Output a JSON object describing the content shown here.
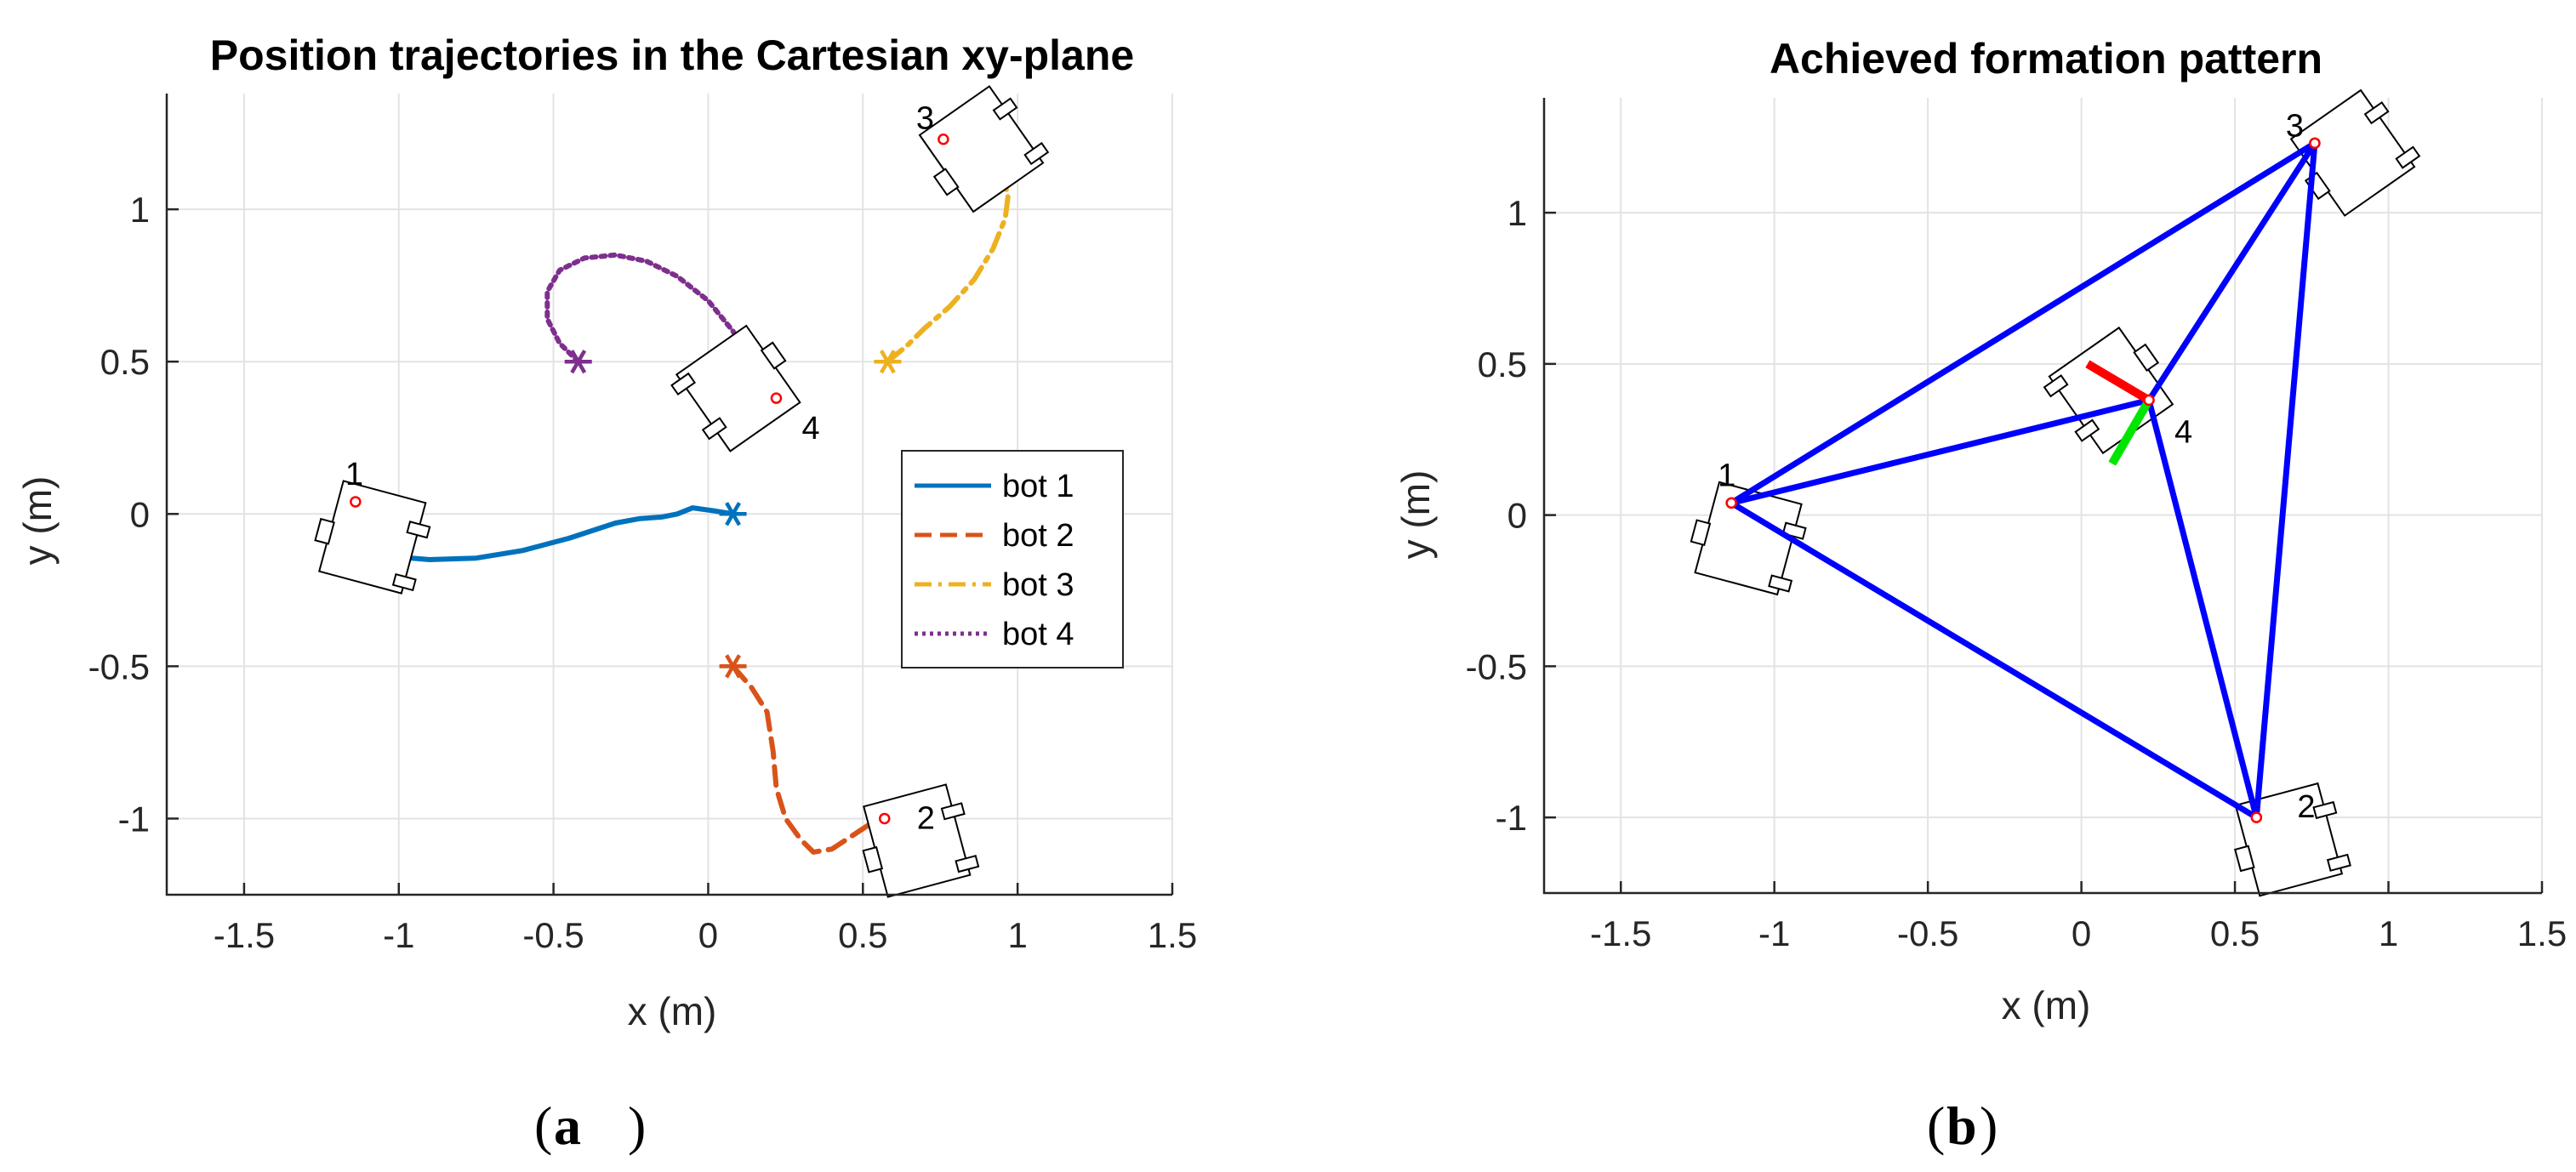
{
  "colors": {
    "bot1": "#0072BD",
    "bot2": "#D95319",
    "bot3": "#EDB120",
    "bot4": "#7E2F8E",
    "formation": "#0000FF",
    "heading_x": "#FF0000",
    "heading_y": "#00E600",
    "marker": "#FF0000"
  },
  "sublabels": {
    "a": "a",
    "b": "b"
  },
  "chart_data": [
    {
      "type": "line",
      "title": "Position trajectories in the Cartesian xy-plane",
      "xlabel": "x (m)",
      "ylabel": "y (m)",
      "xlim": [
        -1.75,
        1.5
      ],
      "ylim": [
        -1.25,
        1.38
      ],
      "xticks": [
        -1.5,
        -1,
        -0.5,
        0,
        0.5,
        1,
        1.5
      ],
      "xtick_labels": [
        "-1.5",
        "-1",
        "-0.5",
        "0",
        "0.5",
        "1",
        "1.5"
      ],
      "yticks": [
        -1,
        -0.5,
        0,
        0.5,
        1
      ],
      "ytick_labels": [
        "-1",
        "-0.5",
        "0",
        "0.5",
        "1"
      ],
      "grid": true,
      "legend": {
        "location": "right",
        "entries": [
          "bot 1",
          "bot 2",
          "bot 3",
          "bot 4"
        ]
      },
      "series": [
        {
          "name": "bot 1",
          "style": "solid",
          "start": [
            0.08,
            0.0
          ],
          "x": [
            0.08,
            0.02,
            -0.05,
            -0.1,
            -0.15,
            -0.22,
            -0.3,
            -0.45,
            -0.6,
            -0.75,
            -0.9,
            -1.02,
            -1.1,
            -1.14,
            -1.15
          ],
          "y": [
            0.0,
            0.01,
            0.02,
            0.0,
            -0.01,
            -0.015,
            -0.03,
            -0.08,
            -0.12,
            -0.145,
            -0.15,
            -0.14,
            -0.1,
            -0.04,
            0.04
          ]
        },
        {
          "name": "bot 2",
          "style": "dashed",
          "start": [
            0.08,
            -0.5
          ],
          "x": [
            0.08,
            0.14,
            0.19,
            0.21,
            0.22,
            0.25,
            0.3,
            0.34,
            0.4,
            0.46,
            0.52,
            0.57
          ],
          "y": [
            -0.5,
            -0.57,
            -0.65,
            -0.78,
            -0.9,
            -1.0,
            -1.07,
            -1.11,
            -1.1,
            -1.06,
            -1.02,
            -1.0
          ]
        },
        {
          "name": "bot 3",
          "style": "dashdot",
          "start": [
            0.58,
            0.5
          ],
          "x": [
            0.58,
            0.64,
            0.7,
            0.78,
            0.86,
            0.92,
            0.96,
            0.97,
            0.94,
            0.88,
            0.8,
            0.76
          ],
          "y": [
            0.5,
            0.55,
            0.61,
            0.68,
            0.77,
            0.87,
            0.97,
            1.05,
            1.12,
            1.17,
            1.21,
            1.23
          ]
        },
        {
          "name": "bot 4",
          "style": "dotted",
          "start": [
            -0.42,
            0.5
          ],
          "x": [
            -0.42,
            -0.48,
            -0.52,
            -0.52,
            -0.48,
            -0.4,
            -0.3,
            -0.2,
            -0.1,
            0.0,
            0.08,
            0.14,
            0.19,
            0.22
          ],
          "y": [
            0.5,
            0.56,
            0.64,
            0.73,
            0.8,
            0.84,
            0.85,
            0.83,
            0.78,
            0.7,
            0.6,
            0.5,
            0.43,
            0.38
          ]
        }
      ],
      "robots": [
        {
          "label": "1",
          "pos": [
            -1.14,
            0.04
          ],
          "heading_deg": -15
        },
        {
          "label": "2",
          "pos": [
            0.57,
            -1.0
          ],
          "heading_deg": 15
        },
        {
          "label": "3",
          "pos": [
            0.76,
            1.23
          ],
          "heading_deg": 35
        },
        {
          "label": "4",
          "pos": [
            0.22,
            0.38
          ],
          "heading_deg": -145
        }
      ]
    },
    {
      "type": "line",
      "title": "Achieved formation pattern",
      "xlabel": "x (m)",
      "ylabel": "y (m)",
      "xlim": [
        -1.75,
        1.5
      ],
      "ylim": [
        -1.25,
        1.38
      ],
      "xticks": [
        -1.5,
        -1,
        -0.5,
        0,
        0.5,
        1,
        1.5
      ],
      "xtick_labels": [
        "-1.5",
        "-1",
        "-0.5",
        "0",
        "0.5",
        "1",
        "1.5"
      ],
      "yticks": [
        -1,
        -0.5,
        0,
        0.5,
        1
      ],
      "ytick_labels": [
        "-1",
        "-0.5",
        "0",
        "0.5",
        "1"
      ],
      "grid": true,
      "robots": [
        {
          "label": "1",
          "pos": [
            -1.14,
            0.04
          ],
          "heading_deg": -15
        },
        {
          "label": "2",
          "pos": [
            0.57,
            -1.0
          ],
          "heading_deg": 15
        },
        {
          "label": "3",
          "pos": [
            0.76,
            1.23
          ],
          "heading_deg": 35
        },
        {
          "label": "4",
          "pos": [
            0.22,
            0.38
          ],
          "heading_deg": -145
        }
      ],
      "formation_edges": [
        [
          1,
          2
        ],
        [
          1,
          3
        ],
        [
          1,
          4
        ],
        [
          2,
          3
        ],
        [
          2,
          4
        ],
        [
          3,
          4
        ]
      ],
      "heading_axes": {
        "robot": "4",
        "x_axis_end": [
          0.02,
          0.5
        ],
        "y_axis_end": [
          0.1,
          0.17
        ]
      }
    }
  ]
}
